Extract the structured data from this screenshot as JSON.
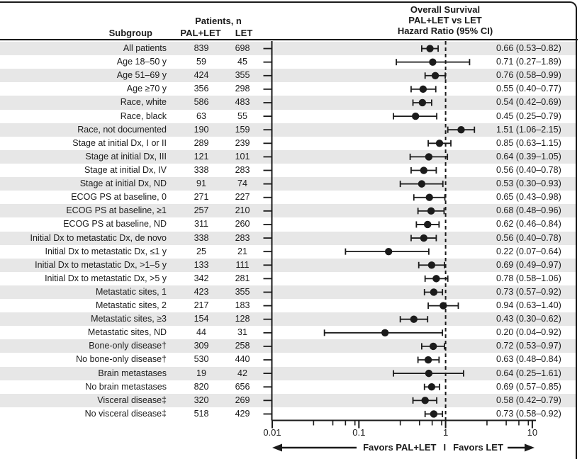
{
  "header": {
    "subgroup_label": "Subgroup",
    "patients_label": "Patients, n",
    "arm1_label": "PAL+LET",
    "arm2_label": "LET",
    "plot_title_line1": "Overall Survival",
    "plot_title_line2": "PAL+LET vs LET",
    "plot_title_line3": "Hazard Ratio (95% CI)"
  },
  "footer": {
    "favors_left": "Favors PAL+LET",
    "separator": "I",
    "favors_right": "Favors LET"
  },
  "colors": {
    "ink": "#1b1b1b",
    "stripe": "#e7e7e7",
    "background": "#ffffff"
  },
  "chart_data": {
    "type": "forest",
    "title": "Overall Survival PAL+LET vs LET Hazard Ratio (95% CI)",
    "x_scale": "log",
    "xlim": [
      0.01,
      10
    ],
    "x_major_ticks": [
      0.01,
      0.1,
      1,
      10
    ],
    "x_major_tick_labels": [
      "0.01",
      "0.1",
      "1",
      "10"
    ],
    "x_minor_ticks": [
      0.03,
      0.05,
      0.07,
      0.09,
      0.3,
      0.5,
      0.7,
      0.9,
      3,
      5,
      7,
      9
    ],
    "reference_line": 1,
    "columns": [
      "Subgroup",
      "PAL+LET n",
      "LET n",
      "HR",
      "CI low",
      "CI high",
      "HR (95% CI) label"
    ],
    "rows": [
      {
        "subgroup": "All patients",
        "pal_let_n": 839,
        "let_n": 698,
        "hr": 0.66,
        "ci_low": 0.53,
        "ci_high": 0.82,
        "label": "0.66 (0.53–0.82)"
      },
      {
        "subgroup": "Age 18–50 y",
        "pal_let_n": 59,
        "let_n": 45,
        "hr": 0.71,
        "ci_low": 0.27,
        "ci_high": 1.89,
        "label": "0.71 (0.27–1.89)"
      },
      {
        "subgroup": "Age 51–69 y",
        "pal_let_n": 424,
        "let_n": 355,
        "hr": 0.76,
        "ci_low": 0.58,
        "ci_high": 0.99,
        "label": "0.76 (0.58–0.99)"
      },
      {
        "subgroup": "Age ≥70 y",
        "pal_let_n": 356,
        "let_n": 298,
        "hr": 0.55,
        "ci_low": 0.4,
        "ci_high": 0.77,
        "label": "0.55 (0.40–0.77)"
      },
      {
        "subgroup": "Race, white",
        "pal_let_n": 586,
        "let_n": 483,
        "hr": 0.54,
        "ci_low": 0.42,
        "ci_high": 0.69,
        "label": "0.54 (0.42–0.69)"
      },
      {
        "subgroup": "Race, black",
        "pal_let_n": 63,
        "let_n": 55,
        "hr": 0.45,
        "ci_low": 0.25,
        "ci_high": 0.79,
        "label": "0.45 (0.25–0.79)"
      },
      {
        "subgroup": "Race, not documented",
        "pal_let_n": 190,
        "let_n": 159,
        "hr": 1.51,
        "ci_low": 1.06,
        "ci_high": 2.15,
        "label": "1.51 (1.06–2.15)"
      },
      {
        "subgroup": "Stage at initial Dx, I or II",
        "pal_let_n": 289,
        "let_n": 239,
        "hr": 0.85,
        "ci_low": 0.63,
        "ci_high": 1.15,
        "label": "0.85 (0.63–1.15)"
      },
      {
        "subgroup": "Stage at initial Dx, III",
        "pal_let_n": 121,
        "let_n": 101,
        "hr": 0.64,
        "ci_low": 0.39,
        "ci_high": 1.05,
        "label": "0.64 (0.39–1.05)"
      },
      {
        "subgroup": "Stage at initial Dx, IV",
        "pal_let_n": 338,
        "let_n": 283,
        "hr": 0.56,
        "ci_low": 0.4,
        "ci_high": 0.78,
        "label": "0.56 (0.40–0.78)"
      },
      {
        "subgroup": "Stage at initial Dx, ND",
        "pal_let_n": 91,
        "let_n": 74,
        "hr": 0.53,
        "ci_low": 0.3,
        "ci_high": 0.93,
        "label": "0.53 (0.30–0.93)"
      },
      {
        "subgroup": "ECOG PS at baseline, 0",
        "pal_let_n": 271,
        "let_n": 227,
        "hr": 0.65,
        "ci_low": 0.43,
        "ci_high": 0.98,
        "label": "0.65 (0.43–0.98)"
      },
      {
        "subgroup": "ECOG PS at baseline, ≥1",
        "pal_let_n": 257,
        "let_n": 210,
        "hr": 0.68,
        "ci_low": 0.48,
        "ci_high": 0.96,
        "label": "0.68 (0.48–0.96)"
      },
      {
        "subgroup": "ECOG PS at baseline, ND",
        "pal_let_n": 311,
        "let_n": 260,
        "hr": 0.62,
        "ci_low": 0.46,
        "ci_high": 0.84,
        "label": "0.62 (0.46–0.84)"
      },
      {
        "subgroup": "Initial Dx to metastatic Dx, de novo",
        "pal_let_n": 338,
        "let_n": 283,
        "hr": 0.56,
        "ci_low": 0.4,
        "ci_high": 0.78,
        "label": "0.56 (0.40–0.78)"
      },
      {
        "subgroup": "Initial Dx to metastatic Dx, ≤1 y",
        "pal_let_n": 25,
        "let_n": 21,
        "hr": 0.22,
        "ci_low": 0.07,
        "ci_high": 0.64,
        "label": "0.22 (0.07–0.64)"
      },
      {
        "subgroup": "Initial Dx to metastatic Dx, >1–5 y",
        "pal_let_n": 133,
        "let_n": 111,
        "hr": 0.69,
        "ci_low": 0.49,
        "ci_high": 0.97,
        "label": "0.69 (0.49–0.97)"
      },
      {
        "subgroup": "Initial Dx to metastatic Dx, >5 y",
        "pal_let_n": 342,
        "let_n": 281,
        "hr": 0.78,
        "ci_low": 0.58,
        "ci_high": 1.06,
        "label": "0.78 (0.58–1.06)"
      },
      {
        "subgroup": "Metastatic sites, 1",
        "pal_let_n": 423,
        "let_n": 355,
        "hr": 0.73,
        "ci_low": 0.57,
        "ci_high": 0.92,
        "label": "0.73 (0.57–0.92)"
      },
      {
        "subgroup": "Metastatic sites, 2",
        "pal_let_n": 217,
        "let_n": 183,
        "hr": 0.94,
        "ci_low": 0.63,
        "ci_high": 1.4,
        "label": "0.94 (0.63–1.40)"
      },
      {
        "subgroup": "Metastatic sites, ≥3",
        "pal_let_n": 154,
        "let_n": 128,
        "hr": 0.43,
        "ci_low": 0.3,
        "ci_high": 0.62,
        "label": "0.43 (0.30–0.62)"
      },
      {
        "subgroup": "Metastatic sites, ND",
        "pal_let_n": 44,
        "let_n": 31,
        "hr": 0.2,
        "ci_low": 0.04,
        "ci_high": 0.92,
        "label": "0.20 (0.04–0.92)"
      },
      {
        "subgroup": "Bone-only disease†",
        "pal_let_n": 309,
        "let_n": 258,
        "hr": 0.72,
        "ci_low": 0.53,
        "ci_high": 0.97,
        "label": "0.72 (0.53–0.97)"
      },
      {
        "subgroup": "No bone-only disease†",
        "pal_let_n": 530,
        "let_n": 440,
        "hr": 0.63,
        "ci_low": 0.48,
        "ci_high": 0.84,
        "label": "0.63 (0.48–0.84)"
      },
      {
        "subgroup": "Brain metastases",
        "pal_let_n": 19,
        "let_n": 42,
        "hr": 0.64,
        "ci_low": 0.25,
        "ci_high": 1.61,
        "label": "0.64 (0.25–1.61)"
      },
      {
        "subgroup": "No brain metastases",
        "pal_let_n": 820,
        "let_n": 656,
        "hr": 0.69,
        "ci_low": 0.57,
        "ci_high": 0.85,
        "label": "0.69 (0.57–0.85)"
      },
      {
        "subgroup": "Visceral disease‡",
        "pal_let_n": 320,
        "let_n": 269,
        "hr": 0.58,
        "ci_low": 0.42,
        "ci_high": 0.79,
        "label": "0.58 (0.42–0.79)"
      },
      {
        "subgroup": "No visceral disease‡",
        "pal_let_n": 518,
        "let_n": 429,
        "hr": 0.73,
        "ci_low": 0.58,
        "ci_high": 0.92,
        "label": "0.73 (0.58–0.92)"
      }
    ]
  }
}
